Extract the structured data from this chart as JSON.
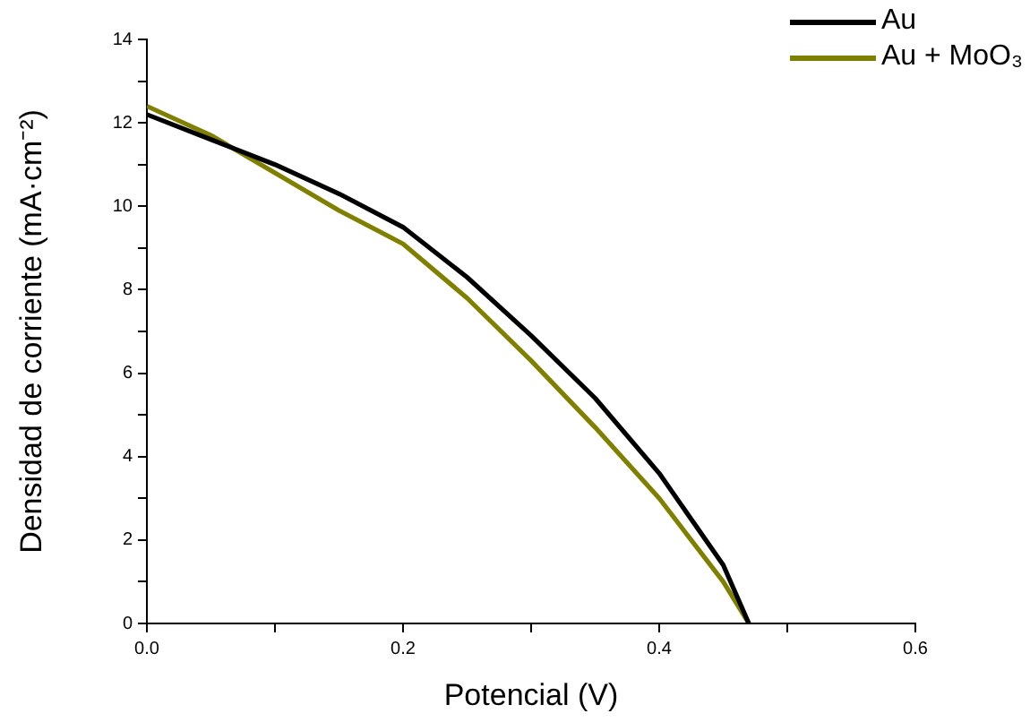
{
  "chart_data": {
    "type": "line",
    "xlabel": "Potencial (V)",
    "ylabel": "Densidad de corriente (mA·cm⁻²)",
    "x": [
      0,
      0.05,
      0.1,
      0.15,
      0.2,
      0.25,
      0.3,
      0.35,
      0.4,
      0.45,
      0.47
    ],
    "series": [
      {
        "name": "Au",
        "color": "#000000",
        "values": [
          12.2,
          11.6,
          11.0,
          10.3,
          9.5,
          8.3,
          6.9,
          5.4,
          3.6,
          1.4,
          0
        ]
      },
      {
        "name": "Au + MoO₃",
        "color": "#808000",
        "values": [
          12.4,
          11.7,
          10.8,
          9.9,
          9.1,
          7.8,
          6.3,
          4.7,
          3.0,
          1.0,
          0
        ]
      }
    ],
    "xlim": [
      0,
      0.6
    ],
    "ylim": [
      0,
      14
    ],
    "xticks": [
      {
        "value": 0,
        "label": "0.0"
      },
      {
        "value": 0.1,
        "label": null
      },
      {
        "value": 0.2,
        "label": "0.2"
      },
      {
        "value": 0.3,
        "label": null
      },
      {
        "value": 0.4,
        "label": "0.4"
      },
      {
        "value": 0.5,
        "label": null
      },
      {
        "value": 0.6,
        "label": "0.6"
      }
    ],
    "yticks": [
      0,
      {
        "value": 1,
        "label": null
      },
      2,
      {
        "value": 3,
        "label": null
      },
      4,
      {
        "value": 5,
        "label": null
      },
      6,
      {
        "value": 7,
        "label": null
      },
      8,
      {
        "value": 9,
        "label": null
      },
      10,
      {
        "value": 11,
        "label": null
      },
      12,
      {
        "value": 13,
        "label": null
      },
      14
    ],
    "grid": false,
    "legend": "top right",
    "marker": "none",
    "line_style": "solid"
  }
}
